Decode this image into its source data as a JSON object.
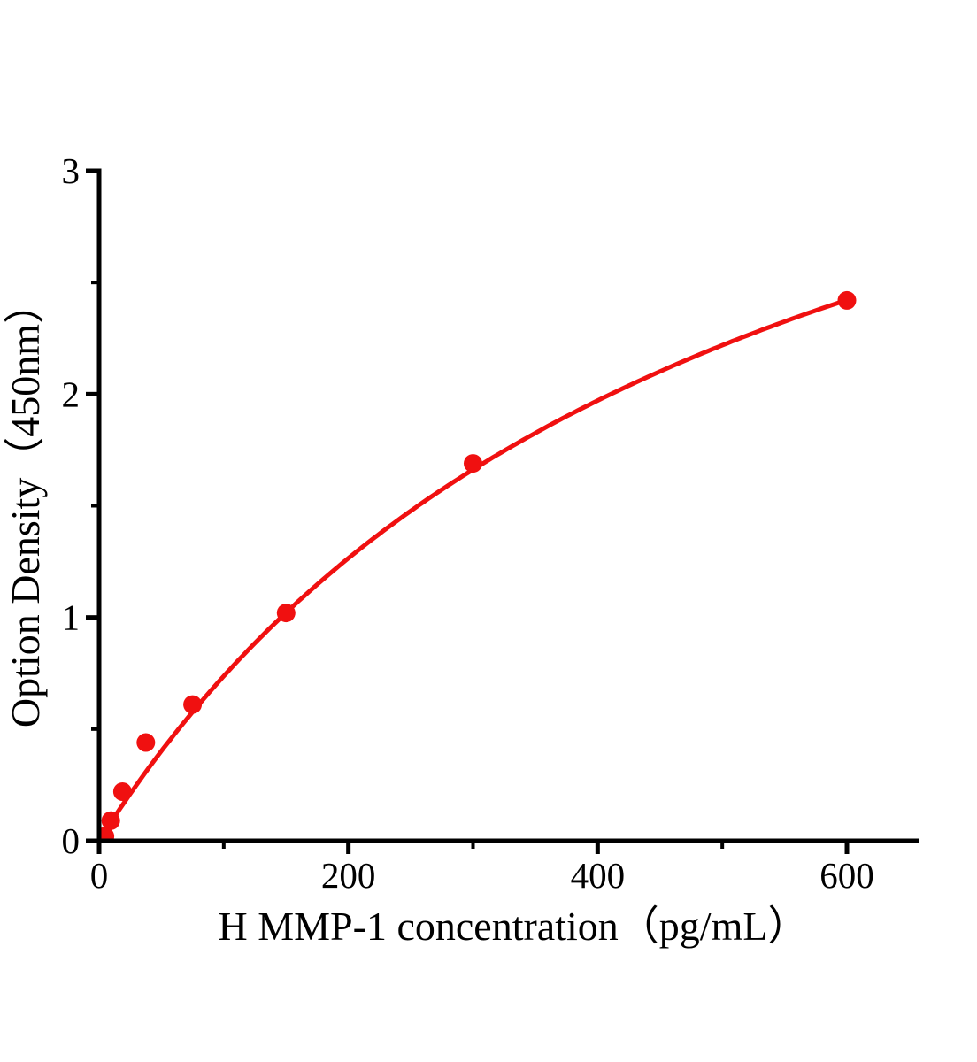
{
  "page": {
    "background_color": "#ffffff"
  },
  "chart_data": {
    "type": "scatter",
    "title": "",
    "xlabel": "H MMP-1 concentration（pg/mL）",
    "ylabel": "Option Density（450nm）",
    "grid": false,
    "legend": false,
    "axis_color": "#000000",
    "x_axis": {
      "min": 0,
      "max": 656,
      "major_ticks": [
        0,
        200,
        400,
        600
      ],
      "tick_labels": [
        "0",
        "200",
        "400",
        "600"
      ],
      "minor_ticks": [
        100,
        300,
        500
      ]
    },
    "y_axis": {
      "min": 0,
      "max": 3,
      "major_ticks": [
        0,
        1,
        2,
        3
      ],
      "tick_labels": [
        "0",
        "1",
        "2",
        "3"
      ],
      "minor_ticks": [
        0.5,
        1.5,
        2.5
      ]
    },
    "series": [
      {
        "name": "H MMP-1 standard curve",
        "color": "#f01010",
        "marker": "circle",
        "marker_radius": 10.5,
        "line_width": 5,
        "points": [
          {
            "x": 4.7,
            "y": 0.02
          },
          {
            "x": 9.375,
            "y": 0.09
          },
          {
            "x": 18.75,
            "y": 0.22
          },
          {
            "x": 37.5,
            "y": 0.44
          },
          {
            "x": 75,
            "y": 0.61
          },
          {
            "x": 150,
            "y": 1.02
          },
          {
            "x": 300,
            "y": 1.69
          },
          {
            "x": 600,
            "y": 2.42
          }
        ],
        "fit_curve": {
          "model": "michaelis_menten",
          "vmax": 4.46,
          "k": 505,
          "x_range": [
            0,
            600
          ]
        }
      }
    ]
  }
}
